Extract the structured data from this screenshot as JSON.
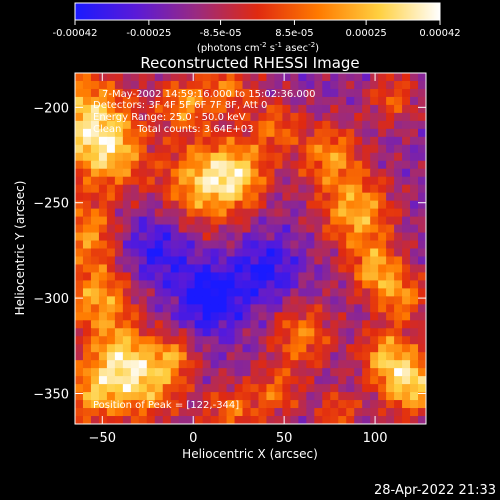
{
  "colorbar": {
    "ticks": [
      "-0.00042",
      "-0.00025",
      "-8.5e-05",
      "8.5e-05",
      "0.00025",
      "0.00042"
    ],
    "tick_values": [
      -0.00042,
      -0.00025,
      -8.5e-05,
      8.5e-05,
      0.00025,
      0.00042
    ],
    "range": [
      -0.00042,
      0.00042
    ],
    "units": {
      "pre": "(photons cm",
      "e1": "-2",
      "mid1": " s",
      "e2": "-1",
      "mid2": " asec",
      "e3": "-2",
      "post": ")"
    },
    "colors": [
      "#1a1aff",
      "#5a1ad8",
      "#9a2a80",
      "#e02a10",
      "#ff7a00",
      "#ffd040",
      "#ffffff"
    ]
  },
  "chart_data": {
    "type": "heatmap",
    "title": "Reconstructed RHESSI Image",
    "xlabel": "Heliocentric X (arcsec)",
    "ylabel": "Heliocentric Y (arcsec)",
    "xlim": [
      -65,
      128
    ],
    "ylim": [
      -366,
      -182
    ],
    "x_ticks": [
      -50,
      0,
      50,
      100
    ],
    "y_ticks": [
      -200,
      -250,
      -300,
      -350
    ],
    "x_tick_labels": [
      "−50",
      "0",
      "50",
      "100"
    ],
    "y_tick_labels": [
      "−200",
      "−250",
      "−300",
      "−350"
    ],
    "peak": [
      122,
      -344
    ],
    "info_lines": [
      "7-May-2002 14:59:16.000 to 15:02:36.000",
      "Detectors: 3F 4F 5F 6F 7F 8F, Att 0",
      "Energy Range: 25.0 - 50.0 keV",
      "Clean     Total counts: 3.64E+03"
    ],
    "peak_label": "Position of Peak = [122,-344]"
  },
  "timestamp": "28-Apr-2022 21:33"
}
